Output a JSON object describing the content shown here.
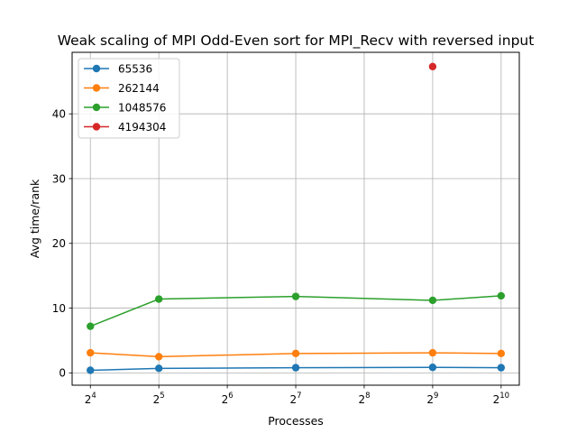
{
  "chart_data": {
    "type": "line",
    "title": "Weak scaling of MPI Odd-Even sort for MPI_Recv with reversed input",
    "xlabel": "Processes",
    "ylabel": "Avg time/rank",
    "x_scale": "log2",
    "xlim": [
      13.3,
      1231
    ],
    "ylim": [
      -1.9,
      49.5
    ],
    "grid": true,
    "legend_position": "upper-left",
    "x_ticks": [
      {
        "value": 16,
        "base": "2",
        "exp": "4"
      },
      {
        "value": 32,
        "base": "2",
        "exp": "5"
      },
      {
        "value": 64,
        "base": "2",
        "exp": "6"
      },
      {
        "value": 128,
        "base": "2",
        "exp": "7"
      },
      {
        "value": 256,
        "base": "2",
        "exp": "8"
      },
      {
        "value": 512,
        "base": "2",
        "exp": "9"
      },
      {
        "value": 1024,
        "base": "2",
        "exp": "10"
      }
    ],
    "y_ticks": [
      {
        "value": 0,
        "label": "0"
      },
      {
        "value": 10,
        "label": "10"
      },
      {
        "value": 20,
        "label": "20"
      },
      {
        "value": 30,
        "label": "30"
      },
      {
        "value": 40,
        "label": "40"
      }
    ],
    "series": [
      {
        "name": "65536",
        "color": "#1f77b4",
        "points": [
          [
            16,
            0.4
          ],
          [
            32,
            0.7
          ],
          [
            128,
            0.8
          ],
          [
            512,
            0.85
          ],
          [
            1024,
            0.8
          ]
        ]
      },
      {
        "name": "262144",
        "color": "#ff7f0e",
        "points": [
          [
            16,
            3.1
          ],
          [
            32,
            2.5
          ],
          [
            128,
            3.0
          ],
          [
            512,
            3.1
          ],
          [
            1024,
            3.0
          ]
        ]
      },
      {
        "name": "1048576",
        "color": "#2ca02c",
        "points": [
          [
            16,
            7.2
          ],
          [
            32,
            11.4
          ],
          [
            128,
            11.8
          ],
          [
            512,
            11.2
          ],
          [
            1024,
            11.9
          ]
        ]
      },
      {
        "name": "4194304",
        "color": "#d62728",
        "points": [
          [
            512,
            47.3
          ]
        ]
      }
    ]
  }
}
